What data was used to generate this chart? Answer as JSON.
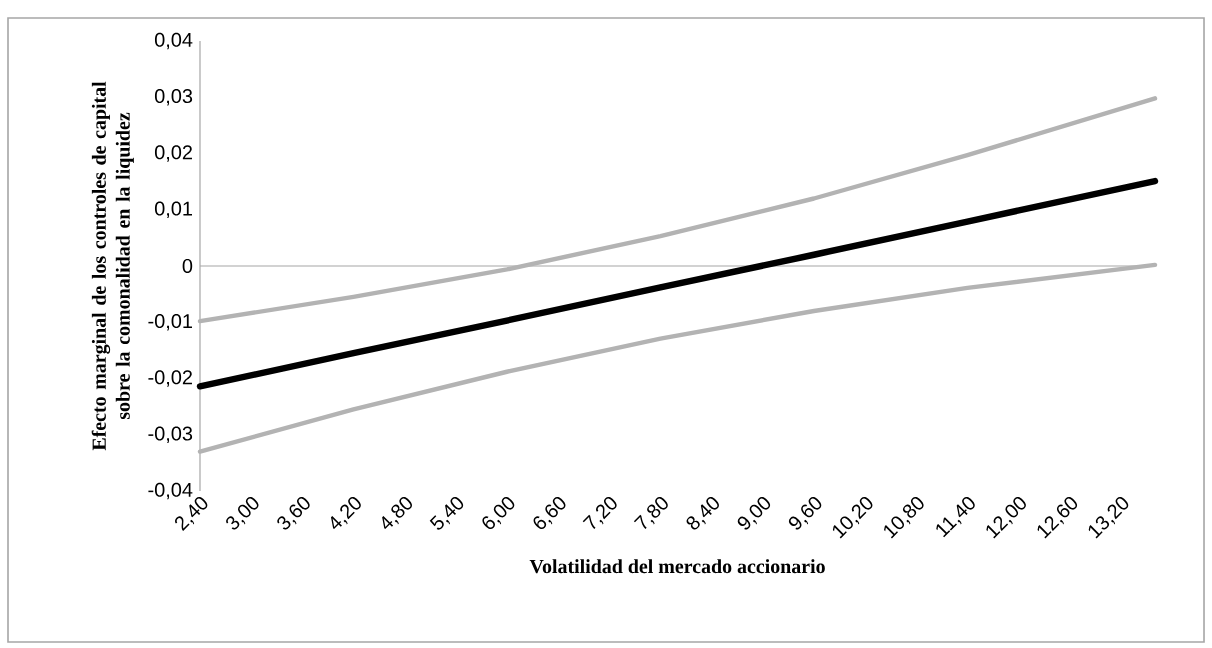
{
  "chart_data": {
    "type": "line",
    "xlabel": "Volatilidad del mercado accionario",
    "ylabel": "Efecto marginal de los controles de capital sobre la comonalidad en la liquidez",
    "x": [
      2.4,
      4.2,
      6.0,
      7.8,
      9.6,
      11.4,
      13.6
    ],
    "series": [
      {
        "color": "#b3b3b3",
        "values": [
          -0.0098,
          -0.0055,
          -0.0006,
          0.0053,
          0.012,
          0.0197,
          0.0298
        ]
      },
      {
        "color": "#b3b3b3",
        "values": [
          -0.033,
          -0.0255,
          -0.0188,
          -0.0129,
          -0.008,
          -0.0039,
          0.0002
        ]
      },
      {
        "color": "#000000",
        "values": [
          -0.0214,
          -0.0155,
          -0.0097,
          -0.0038,
          0.002,
          0.0079,
          0.0151
        ]
      }
    ],
    "xlim": [
      2.4,
      13.6
    ],
    "xticks": [
      {
        "value": 2.4,
        "label": "2,40"
      },
      {
        "value": 3.0,
        "label": "3,00"
      },
      {
        "value": 3.6,
        "label": "3,60"
      },
      {
        "value": 4.2,
        "label": "4,20"
      },
      {
        "value": 4.8,
        "label": "4,80"
      },
      {
        "value": 5.4,
        "label": "5,40"
      },
      {
        "value": 6.0,
        "label": "6,00"
      },
      {
        "value": 6.6,
        "label": "6,60"
      },
      {
        "value": 7.2,
        "label": "7,20"
      },
      {
        "value": 7.8,
        "label": "7,80"
      },
      {
        "value": 8.4,
        "label": "8,40"
      },
      {
        "value": 9.0,
        "label": "9,00"
      },
      {
        "value": 9.6,
        "label": "9,60"
      },
      {
        "value": 10.2,
        "label": "10,20"
      },
      {
        "value": 10.8,
        "label": "10,80"
      },
      {
        "value": 11.4,
        "label": "11,40"
      },
      {
        "value": 12.0,
        "label": "12,00"
      },
      {
        "value": 12.6,
        "label": "12,60"
      },
      {
        "value": 13.2,
        "label": "13,20"
      }
    ],
    "ylim": [
      -0.04,
      0.04
    ],
    "yticks": [
      {
        "value": -0.04,
        "label": "-0,04"
      },
      {
        "value": -0.03,
        "label": "-0,03"
      },
      {
        "value": -0.02,
        "label": "-0,02"
      },
      {
        "value": -0.01,
        "label": "-0,01"
      },
      {
        "value": 0,
        "label": "0"
      },
      {
        "value": 0.01,
        "label": "0,01"
      },
      {
        "value": 0.02,
        "label": "0,02"
      },
      {
        "value": 0.03,
        "label": "0,03"
      },
      {
        "value": 0.04,
        "label": "0,04"
      }
    ],
    "ref_lines": [
      {
        "axis": "y",
        "value": 0,
        "color": "#a6a6a6"
      }
    ],
    "marker": "none",
    "line_style": "solid"
  }
}
